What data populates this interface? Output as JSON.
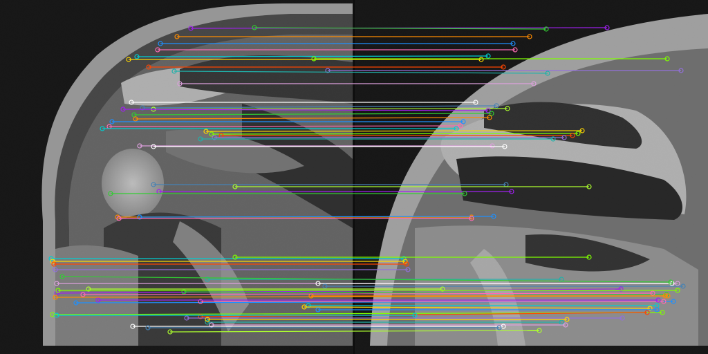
{
  "figure": {
    "description_free": true,
    "panels": [
      "left-mri-slice",
      "right-mri-slice"
    ],
    "match_line_count": 68,
    "palette": [
      "#a020f0",
      "#32cd32",
      "#ff8c00",
      "#1e90ff",
      "#ff69b4",
      "#00ced1",
      "#ffd700",
      "#7fff00",
      "#ff4500",
      "#9370db",
      "#20b2aa",
      "#dda0dd",
      "#ffffff",
      "#4682b4",
      "#adff2f"
    ]
  }
}
